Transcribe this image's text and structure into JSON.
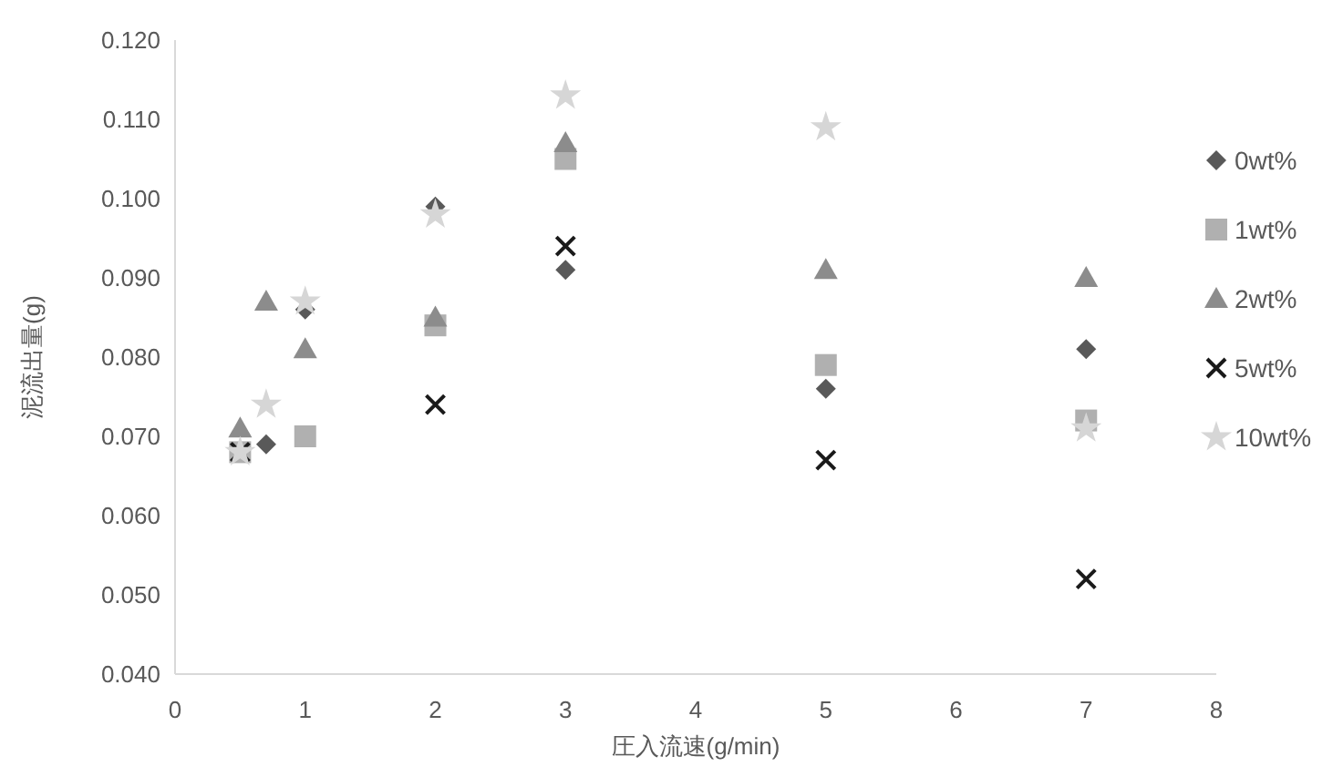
{
  "chart_data": {
    "type": "scatter",
    "xlabel": "圧入流速(g/min)",
    "ylabel": "泥流出量(g)",
    "xlim": [
      0,
      8
    ],
    "xticks": [
      0,
      1,
      2,
      3,
      4,
      5,
      6,
      7,
      8
    ],
    "ylim": [
      0.04,
      0.12
    ],
    "yticks": [
      {
        "value": 0.04,
        "label": "0.040"
      },
      {
        "value": 0.05,
        "label": "0.050"
      },
      {
        "value": 0.06,
        "label": "0.060"
      },
      {
        "value": 0.07,
        "label": "0.070"
      },
      {
        "value": 0.08,
        "label": "0.080"
      },
      {
        "value": 0.09,
        "label": "0.090"
      },
      {
        "value": 0.1,
        "label": "0.100"
      },
      {
        "value": 0.11,
        "label": "0.110"
      },
      {
        "value": 0.12,
        "label": "0.120"
      }
    ],
    "grid": false,
    "legend": "right",
    "series": [
      {
        "name": "0wt%",
        "color": "#595959",
        "marker": "diamond",
        "x": [
          0.7,
          1,
          2,
          3,
          5,
          7
        ],
        "values": [
          0.069,
          0.086,
          0.099,
          0.091,
          0.076,
          0.081
        ]
      },
      {
        "name": "1wt%",
        "color": "#b0b0b0",
        "marker": "square",
        "x": [
          0.5,
          1,
          2,
          3,
          5,
          7
        ],
        "values": [
          0.068,
          0.07,
          0.084,
          0.105,
          0.079,
          0.072
        ]
      },
      {
        "name": "2wt%",
        "color": "#8c8c8c",
        "marker": "triangle",
        "x": [
          0.5,
          0.7,
          1,
          2,
          3,
          5,
          7
        ],
        "values": [
          0.071,
          0.087,
          0.081,
          0.085,
          0.107,
          0.091,
          0.09
        ]
      },
      {
        "name": "5wt%",
        "color": "#1a1a1a",
        "marker": "cross",
        "x": [
          0.5,
          2,
          3,
          5,
          7
        ],
        "values": [
          0.068,
          0.074,
          0.094,
          0.067,
          0.052
        ]
      },
      {
        "name": "10wt%",
        "color": "#d6d6d6",
        "marker": "star",
        "x": [
          0.5,
          0.7,
          1,
          2,
          3,
          5,
          7
        ],
        "values": [
          0.068,
          0.074,
          0.087,
          0.098,
          0.113,
          0.109,
          0.071
        ]
      }
    ]
  }
}
